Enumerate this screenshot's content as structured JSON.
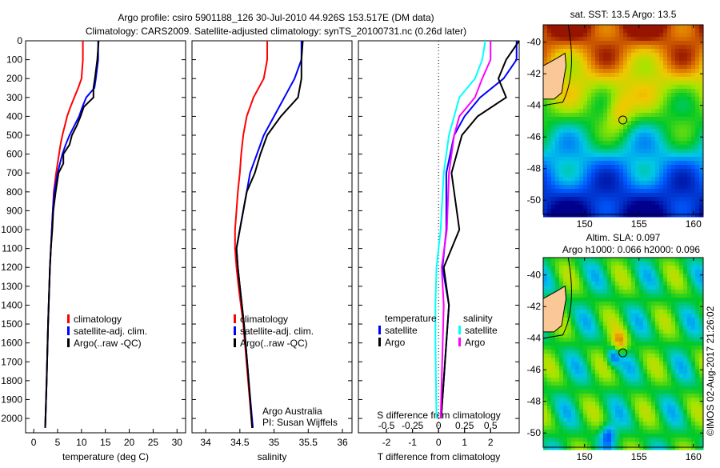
{
  "title_line1": "Argo profile: csiro 5901188_126 30-Jul-2010 44.926S 153.517E (DM data)",
  "title_line2": "Climatology: CARS2009. Satellite-adjusted climatology: synTS_20100731.nc (0.26d later)",
  "colors": {
    "climatology": "#ff0000",
    "satellite": "#0000ff",
    "argo": "#000000",
    "s_satellite": "#00ffff",
    "s_argo": "#ff00ff"
  },
  "chart_data": [
    {
      "type": "line",
      "name": "temperature",
      "xlabel": "temperature (deg C)",
      "xlim": [
        -1.7,
        31.8
      ],
      "ylim": [
        0,
        2076
      ],
      "xticks": [
        0,
        5,
        10,
        15,
        20,
        25,
        30
      ],
      "yticks": [
        0,
        100,
        200,
        300,
        400,
        500,
        600,
        700,
        800,
        900,
        1000,
        1100,
        1200,
        1300,
        1400,
        1500,
        1600,
        1700,
        1800,
        1900,
        2000
      ],
      "legend": [
        "climatology",
        "satellite-adj. clim.",
        "Argo(..raw -QC)"
      ],
      "depth": [
        0,
        100,
        200,
        250,
        300,
        350,
        400,
        450,
        500,
        550,
        600,
        650,
        700,
        800,
        900,
        1000,
        1100,
        1200,
        1500,
        1800,
        2050
      ],
      "series": [
        {
          "name": "climatology",
          "values": [
            10.3,
            10.3,
            10,
            9.3,
            8.5,
            7.7,
            7,
            6.5,
            6,
            5.6,
            5.3,
            5,
            4.7,
            4.2,
            4,
            3.8,
            3.6,
            3.4,
            3,
            2.7,
            2.4
          ]
        },
        {
          "name": "satellite",
          "values": [
            13.5,
            13.5,
            13,
            12.7,
            11,
            10.2,
            9.5,
            8.5,
            7.5,
            6.7,
            6,
            5.5,
            5,
            4.3,
            4,
            3.8,
            3.6,
            3.4,
            3,
            2.7,
            2.4
          ]
        },
        {
          "name": "argo",
          "values": [
            13.6,
            13.3,
            12.8,
            12.5,
            12.5,
            10.5,
            9.8,
            9,
            8,
            7.5,
            6.2,
            6.2,
            5.2,
            4.6,
            4.1,
            3.9,
            3.6,
            3.4,
            3,
            2.7,
            2.4
          ]
        }
      ]
    },
    {
      "type": "line",
      "name": "salinity",
      "xlabel": "salinity",
      "xlim": [
        33.8,
        36.14
      ],
      "ylim": [
        0,
        2076
      ],
      "xticks": [
        34,
        34.5,
        35,
        35.5,
        36
      ],
      "legend": [
        "climatology",
        "satellite-adj. clim.",
        "Argo(..raw -QC)"
      ],
      "annotation": [
        "Argo Australia",
        "PI: Susan Wijffels"
      ],
      "depth": [
        0,
        100,
        200,
        300,
        400,
        500,
        600,
        700,
        800,
        900,
        1000,
        1100,
        1200,
        1300,
        1500,
        1800,
        2050
      ],
      "series": [
        {
          "name": "climatology",
          "values": [
            34.9,
            34.9,
            34.85,
            34.7,
            34.6,
            34.55,
            34.52,
            34.5,
            34.47,
            34.45,
            34.43,
            34.43,
            34.45,
            34.48,
            34.55,
            34.62,
            34.68
          ]
        },
        {
          "name": "satellite",
          "values": [
            35.4,
            35.4,
            35.3,
            35.15,
            35,
            34.85,
            34.75,
            34.65,
            34.6,
            34.55,
            34.5,
            34.45,
            34.47,
            34.5,
            34.56,
            34.63,
            34.69
          ]
        },
        {
          "name": "argo",
          "values": [
            35.42,
            35.4,
            35.4,
            35.35,
            35.1,
            34.9,
            34.8,
            34.72,
            34.6,
            34.55,
            34.5,
            34.45,
            34.47,
            34.5,
            34.56,
            34.63,
            34.68
          ]
        }
      ]
    },
    {
      "type": "line",
      "name": "difference",
      "xlabel": "T difference from climatology",
      "x2label": "S difference from climatology",
      "xlim": [
        -3.08,
        3.1
      ],
      "ylim": [
        0,
        2076
      ],
      "xticks": [
        -2,
        -1,
        0,
        1,
        2
      ],
      "x2ticks": [
        "-0.5",
        "-0.25",
        "0",
        "0.25",
        "0.5"
      ],
      "s_scale": 4,
      "legend_headers": [
        "temperature",
        "salinity"
      ],
      "legend": [
        "satellite",
        "Argo",
        "satellite",
        "Argo"
      ],
      "depth": [
        0,
        100,
        200,
        300,
        400,
        500,
        700,
        1000,
        1200,
        1400,
        1600,
        2000
      ],
      "series": [
        {
          "name": "T satellite",
          "values": [
            3.0,
            3.0,
            2.5,
            1.6,
            1.0,
            0.6,
            0.3,
            0.3,
            0.15,
            0.4,
            0.3,
            0.1
          ]
        },
        {
          "name": "T Argo",
          "values": [
            3.1,
            2.6,
            2.3,
            2.6,
            1.5,
            0.9,
            0.5,
            0.8,
            0.2,
            0.4,
            0.3,
            0.1
          ]
        },
        {
          "name": "S satellite",
          "values": [
            0.45,
            0.42,
            0.35,
            0.2,
            0.15,
            0.1,
            0.05,
            0.02,
            -0.02,
            -0.03,
            -0.03,
            -0.02
          ]
        },
        {
          "name": "S Argo",
          "values": [
            0.5,
            0.5,
            0.42,
            0.35,
            0.2,
            0.15,
            0.1,
            0.08,
            0.03,
            0.05,
            0.04,
            0.02
          ]
        }
      ]
    },
    {
      "type": "heatmap",
      "name": "sst_map",
      "title": "sat. SST: 13.5  Argo: 13.5",
      "xlim": [
        146.2,
        160.9
      ],
      "ylim": [
        -50.9,
        -38.9
      ],
      "xticks": [
        "150",
        "155",
        "160"
      ],
      "yticks": [
        "-40",
        "-42",
        "-44",
        "-46",
        "-48",
        "-50"
      ],
      "argo_position": [
        153.517,
        -44.926
      ]
    },
    {
      "type": "heatmap",
      "name": "sla_map",
      "title": "Altim. SLA: 0.097",
      "subtitle": "Argo h1000: 0.066 h2000: 0.096",
      "xlim": [
        146.2,
        160.9
      ],
      "ylim": [
        -50.9,
        -38.9
      ],
      "xticks": [
        "150",
        "155",
        "160"
      ],
      "yticks": [
        "-40",
        "-42",
        "-44",
        "-46",
        "-48",
        "-50"
      ],
      "argo_position": [
        153.517,
        -44.926
      ]
    }
  ],
  "credit": "©IMOS 02-Aug-2017 21:26:02"
}
